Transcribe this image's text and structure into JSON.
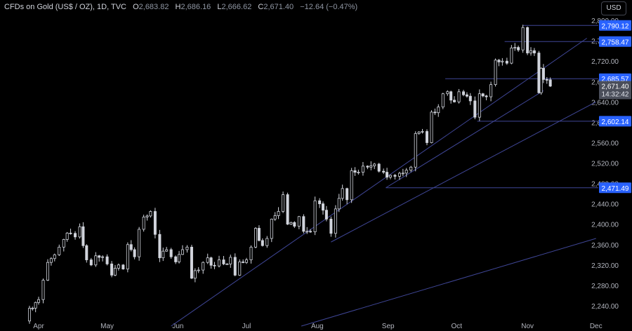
{
  "header": {
    "symbol": "CFDs on Gold (US$ / OZ), 1D, TVC",
    "open_label": "O",
    "open": "2,683.82",
    "high_label": "H",
    "high": "2,686.16",
    "low_label": "L",
    "low": "2,666.62",
    "close_label": "C",
    "close": "2,671.40",
    "change": "−12.64 (−0.47%)"
  },
  "currency_button": "USD",
  "chart_data": {
    "type": "candlestick",
    "ylim": [
      2200,
      2818
    ],
    "y_ticks": [
      2240,
      2280,
      2320,
      2360,
      2400,
      2440,
      2480,
      2520,
      2560,
      2600,
      2640,
      2680,
      2720,
      2760,
      2800
    ],
    "y_tick_labels": [
      "2,240.00",
      "2,280.00",
      "2,320.00",
      "2,360.00",
      "2,400.00",
      "2,440.00",
      "2,480.00",
      "2,520.00",
      "2,560.00",
      "2,600.00",
      "2,640.00",
      "2,680.00",
      "2,720.00",
      "2,760.00",
      "2,800.00"
    ],
    "x_labels": [
      {
        "label": "Apr",
        "date": "2024-04-01"
      },
      {
        "label": "May",
        "date": "2024-05-01"
      },
      {
        "label": "Jun",
        "date": "2024-06-01"
      },
      {
        "label": "Jul",
        "date": "2024-07-01"
      },
      {
        "label": "Aug",
        "date": "2024-08-01"
      },
      {
        "label": "Sep",
        "date": "2024-09-01"
      },
      {
        "label": "Oct",
        "date": "2024-10-01"
      },
      {
        "label": "Nov",
        "date": "2024-11-01"
      },
      {
        "label": "Dec",
        "date": "2024-12-01"
      }
    ],
    "close_path": [
      [
        "2024-03-26",
        2210
      ],
      [
        "2024-03-28",
        2235
      ],
      [
        "2024-04-01",
        2252
      ],
      [
        "2024-04-03",
        2290
      ],
      [
        "2024-04-05",
        2325
      ],
      [
        "2024-04-08",
        2340
      ],
      [
        "2024-04-10",
        2355
      ],
      [
        "2024-04-12",
        2370
      ],
      [
        "2024-04-15",
        2382
      ],
      [
        "2024-04-17",
        2375
      ],
      [
        "2024-04-19",
        2395
      ],
      [
        "2024-04-22",
        2330
      ],
      [
        "2024-04-24",
        2320
      ],
      [
        "2024-04-26",
        2338
      ],
      [
        "2024-04-29",
        2336
      ],
      [
        "2024-05-01",
        2322
      ],
      [
        "2024-05-03",
        2300
      ],
      [
        "2024-05-06",
        2320
      ],
      [
        "2024-05-08",
        2312
      ],
      [
        "2024-05-10",
        2360
      ],
      [
        "2024-05-13",
        2336
      ],
      [
        "2024-05-15",
        2390
      ],
      [
        "2024-05-17",
        2414
      ],
      [
        "2024-05-20",
        2425
      ],
      [
        "2024-05-22",
        2380
      ],
      [
        "2024-05-24",
        2334
      ],
      [
        "2024-05-27",
        2350
      ],
      [
        "2024-05-29",
        2336
      ],
      [
        "2024-05-31",
        2326
      ],
      [
        "2024-06-03",
        2350
      ],
      [
        "2024-06-05",
        2355
      ],
      [
        "2024-06-07",
        2294
      ],
      [
        "2024-06-10",
        2310
      ],
      [
        "2024-06-12",
        2325
      ],
      [
        "2024-06-14",
        2334
      ],
      [
        "2024-06-17",
        2318
      ],
      [
        "2024-06-19",
        2330
      ],
      [
        "2024-06-21",
        2322
      ],
      [
        "2024-06-24",
        2335
      ],
      [
        "2024-06-26",
        2300
      ],
      [
        "2024-06-28",
        2326
      ],
      [
        "2024-07-01",
        2330
      ],
      [
        "2024-07-03",
        2355
      ],
      [
        "2024-07-05",
        2392
      ],
      [
        "2024-07-08",
        2358
      ],
      [
        "2024-07-10",
        2372
      ],
      [
        "2024-07-12",
        2410
      ],
      [
        "2024-07-15",
        2425
      ],
      [
        "2024-07-17",
        2458
      ],
      [
        "2024-07-19",
        2400
      ],
      [
        "2024-07-22",
        2396
      ],
      [
        "2024-07-24",
        2415
      ],
      [
        "2024-07-26",
        2386
      ],
      [
        "2024-07-29",
        2385
      ],
      [
        "2024-07-31",
        2446
      ],
      [
        "2024-08-02",
        2440
      ],
      [
        "2024-08-05",
        2410
      ],
      [
        "2024-08-07",
        2382
      ],
      [
        "2024-08-09",
        2430
      ],
      [
        "2024-08-12",
        2470
      ],
      [
        "2024-08-14",
        2448
      ],
      [
        "2024-08-16",
        2505
      ],
      [
        "2024-08-19",
        2502
      ],
      [
        "2024-08-21",
        2514
      ],
      [
        "2024-08-23",
        2512
      ],
      [
        "2024-08-26",
        2518
      ],
      [
        "2024-08-28",
        2504
      ],
      [
        "2024-08-30",
        2502
      ],
      [
        "2024-09-02",
        2496
      ],
      [
        "2024-09-04",
        2494
      ],
      [
        "2024-09-06",
        2500
      ],
      [
        "2024-09-09",
        2506
      ],
      [
        "2024-09-11",
        2512
      ],
      [
        "2024-09-13",
        2578
      ],
      [
        "2024-09-16",
        2582
      ],
      [
        "2024-09-18",
        2560
      ],
      [
        "2024-09-20",
        2620
      ],
      [
        "2024-09-23",
        2630
      ],
      [
        "2024-09-25",
        2656
      ],
      [
        "2024-09-27",
        2660
      ],
      [
        "2024-09-30",
        2640
      ],
      [
        "2024-10-02",
        2660
      ],
      [
        "2024-10-04",
        2654
      ],
      [
        "2024-10-07",
        2642
      ],
      [
        "2024-10-09",
        2610
      ],
      [
        "2024-10-11",
        2656
      ],
      [
        "2024-10-14",
        2650
      ],
      [
        "2024-10-16",
        2674
      ],
      [
        "2024-10-18",
        2722
      ],
      [
        "2024-10-21",
        2720
      ],
      [
        "2024-10-23",
        2716
      ],
      [
        "2024-10-25",
        2746
      ],
      [
        "2024-10-28",
        2742
      ],
      [
        "2024-10-30",
        2786
      ],
      [
        "2024-11-01",
        2736
      ],
      [
        "2024-11-04",
        2736
      ],
      [
        "2024-11-06",
        2658
      ],
      [
        "2024-11-07",
        2706
      ],
      [
        "2024-11-08",
        2684
      ],
      [
        "2024-11-11",
        2671
      ]
    ],
    "levels": [
      {
        "value": 2790.12,
        "label": "2,790.12",
        "from": "2024-10-30"
      },
      {
        "value": 2758.47,
        "label": "2,758.47",
        "from": "2024-10-22"
      },
      {
        "value": 2685.57,
        "label": "2,685.57",
        "from": "2024-09-26"
      },
      {
        "value": 2602.14,
        "label": "2,602.14",
        "from": "2024-10-10"
      },
      {
        "value": 2471.49,
        "label": "2,471.49",
        "from": "2024-08-31"
      }
    ],
    "trendlines": [
      {
        "from": [
          "2024-05-29",
          2200
        ],
        "to": [
          "2024-11-27",
          2765
        ]
      },
      {
        "from": [
          "2024-08-07",
          2365
        ],
        "to": [
          "2024-12-01",
          2640
        ]
      },
      {
        "from": [
          "2024-07-25",
          2200
        ],
        "to": [
          "2024-12-01",
          2372
        ]
      },
      {
        "from": [
          "2024-08-31",
          2471.49
        ],
        "to": [
          "2024-11-08",
          2662
        ]
      }
    ],
    "last_price": {
      "value": 2671.4,
      "label": "2,671.40",
      "countdown": "14:32:42"
    },
    "colors": {
      "candle": "#d1d4dc",
      "line": "#3f4696",
      "label_bg": "#2962ff",
      "text": "#b2b5be",
      "price_tag": "#4a4e5a"
    }
  }
}
